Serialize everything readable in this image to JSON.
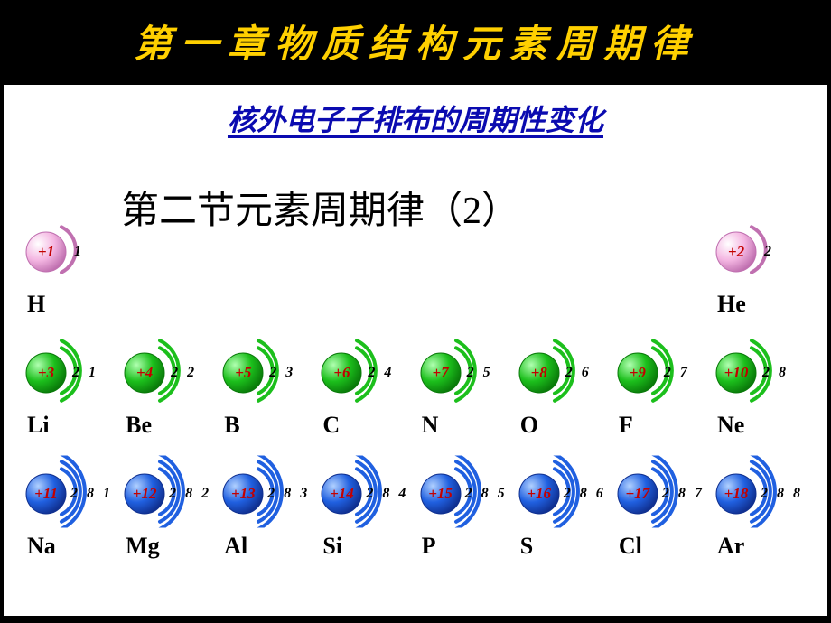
{
  "chapter_title": "第一章物质结构元素周期律",
  "chapter_title_color": "#ffd000",
  "chapter_title_fontsize": 42,
  "subtitle2": "核外电子子排布的周期性变化",
  "subtitle2_color": "#0b0bb0",
  "subtitle2_fontsize": 32,
  "section_title": "第二节元素周期律（2）",
  "section_title_fontsize": 42,
  "bg_content": "#ffffff",
  "elements": {
    "row1": [
      {
        "z": "+1",
        "sym": "H",
        "shells": [
          1
        ],
        "color": "pink"
      },
      {
        "z": "+2",
        "sym": "He",
        "shells": [
          2
        ],
        "color": "pink"
      }
    ],
    "row2": [
      {
        "z": "+3",
        "sym": "Li",
        "shells": [
          2,
          1
        ],
        "color": "green"
      },
      {
        "z": "+4",
        "sym": "Be",
        "shells": [
          2,
          2
        ],
        "color": "green"
      },
      {
        "z": "+5",
        "sym": "B",
        "shells": [
          2,
          3
        ],
        "color": "green"
      },
      {
        "z": "+6",
        "sym": "C",
        "shells": [
          2,
          4
        ],
        "color": "green"
      },
      {
        "z": "+7",
        "sym": "N",
        "shells": [
          2,
          5
        ],
        "color": "green"
      },
      {
        "z": "+8",
        "sym": "O",
        "shells": [
          2,
          6
        ],
        "color": "green"
      },
      {
        "z": "+9",
        "sym": "F",
        "shells": [
          2,
          7
        ],
        "color": "green"
      },
      {
        "z": "+10",
        "sym": "Ne",
        "shells": [
          2,
          8
        ],
        "color": "green"
      }
    ],
    "row3": [
      {
        "z": "+11",
        "sym": "Na",
        "shells": [
          2,
          8,
          1
        ],
        "color": "blue"
      },
      {
        "z": "+12",
        "sym": "Mg",
        "shells": [
          2,
          8,
          2
        ],
        "color": "blue"
      },
      {
        "z": "+13",
        "sym": "Al",
        "shells": [
          2,
          8,
          3
        ],
        "color": "blue"
      },
      {
        "z": "+14",
        "sym": "Si",
        "shells": [
          2,
          8,
          4
        ],
        "color": "blue"
      },
      {
        "z": "+15",
        "sym": "P",
        "shells": [
          2,
          8,
          5
        ],
        "color": "blue"
      },
      {
        "z": "+16",
        "sym": "S",
        "shells": [
          2,
          8,
          6
        ],
        "color": "blue"
      },
      {
        "z": "+17",
        "sym": "Cl",
        "shells": [
          2,
          8,
          7
        ],
        "color": "blue"
      },
      {
        "z": "+18",
        "sym": "Ar",
        "shells": [
          2,
          8,
          8
        ],
        "color": "blue"
      }
    ]
  },
  "colors": {
    "pink": {
      "fill": "#f4b6e2",
      "hi": "#ffffff",
      "stroke": "#c070b0",
      "arc": "#c070b0"
    },
    "green": {
      "fill": "#1cbf1c",
      "hi": "#b0ffb0",
      "stroke": "#0a7a0a",
      "arc": "#1cbf1c"
    },
    "blue": {
      "fill": "#2060e0",
      "hi": "#b0d0ff",
      "stroke": "#103090",
      "arc": "#2060e0"
    }
  }
}
